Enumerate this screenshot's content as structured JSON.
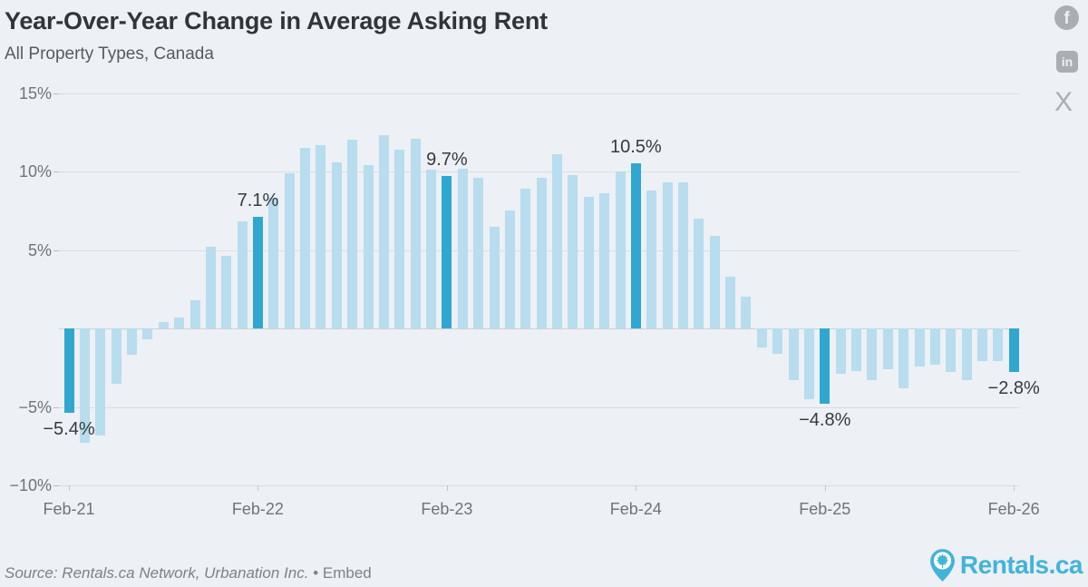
{
  "header": {
    "title": "Year-Over-Year Change in Average Asking Rent",
    "subtitle": "All Property Types, Canada"
  },
  "social": {
    "facebook_glyph": "f",
    "linkedin_glyph": "in",
    "x_glyph": "X"
  },
  "chart_data": {
    "type": "bar",
    "title": "Year-Over-Year Change in Average Asking Rent",
    "subtitle": "All Property Types, Canada",
    "unit": "percent year-over-year",
    "x_range": [
      "Feb-21",
      "Feb-26"
    ],
    "x_interval": "1 month",
    "x_tick_labels": [
      "Feb-21",
      "Feb-22",
      "Feb-23",
      "Feb-24",
      "Feb-25",
      "Feb-26"
    ],
    "x_tick_month_step": 12,
    "y_ticks": [
      {
        "pct": 15,
        "label": "15%"
      },
      {
        "pct": 10,
        "label": "10%"
      },
      {
        "pct": 5,
        "label": "5%"
      },
      {
        "pct": -5,
        "label": "−5%"
      },
      {
        "pct": -10,
        "label": "−10%"
      }
    ],
    "ylim": [
      -10,
      15
    ],
    "grid": true,
    "legend": false,
    "values": [
      -5.4,
      -7.3,
      -6.8,
      -3.5,
      -1.7,
      -0.7,
      0.4,
      0.7,
      1.8,
      5.2,
      4.6,
      6.8,
      7.1,
      8.3,
      9.9,
      11.5,
      11.7,
      10.6,
      12.0,
      10.4,
      12.3,
      11.4,
      12.1,
      10.1,
      9.7,
      10.2,
      9.6,
      6.5,
      7.5,
      8.9,
      9.6,
      11.1,
      9.8,
      8.4,
      8.6,
      10.0,
      10.5,
      8.8,
      9.3,
      9.3,
      7.0,
      5.9,
      3.3,
      2.0,
      -1.2,
      -1.6,
      -3.3,
      -4.5,
      -4.8,
      -2.9,
      -2.7,
      -3.3,
      -2.6,
      -3.8,
      -2.4,
      -2.3,
      -2.8,
      -3.3,
      -2.1,
      -2.1,
      -2.8
    ],
    "highlight_indices": [
      0,
      12,
      24,
      36,
      48,
      60
    ],
    "annotations": [
      {
        "index": 0,
        "text": "−5.4%",
        "side": "below"
      },
      {
        "index": 12,
        "text": "7.1%",
        "side": "above"
      },
      {
        "index": 24,
        "text": "9.7%",
        "side": "above"
      },
      {
        "index": 36,
        "text": "10.5%",
        "side": "above"
      },
      {
        "index": 48,
        "text": "−4.8%",
        "side": "below"
      },
      {
        "index": 60,
        "text": "−2.8%",
        "side": "below"
      }
    ],
    "colors": {
      "bar": "#b7ddee",
      "highlight": "#30a7d0"
    }
  },
  "footer": {
    "source": "Source: Rentals.ca Network, Urbanation Inc.",
    "bullet": "•",
    "embed_label": "Embed",
    "logo_text": "Rentals.ca"
  }
}
